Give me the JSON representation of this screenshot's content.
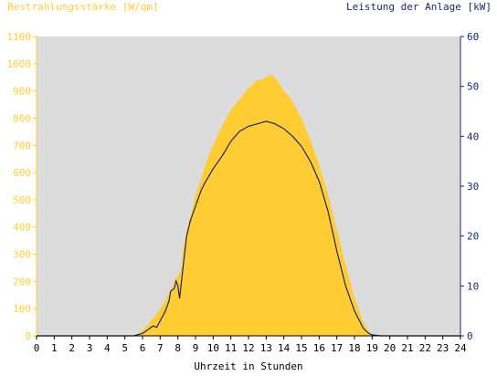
{
  "chart_data": {
    "type": "area",
    "left_axis_label": "Bestrahlungsstärke [W/qm]",
    "right_axis_label": "Leistung der Anlage [kW]",
    "xlabel": "Uhrzeit in Stunden",
    "xlim": [
      0,
      24
    ],
    "x_ticks": [
      "0",
      "1",
      "2",
      "3",
      "4",
      "5",
      "6",
      "7",
      "8",
      "9",
      "10",
      "11",
      "12",
      "13",
      "14",
      "15",
      "16",
      "17",
      "18",
      "19",
      "20",
      "21",
      "22",
      "23",
      "24"
    ],
    "y_left_lim": [
      0,
      1100
    ],
    "y_left_ticks": [
      "0",
      "100",
      "200",
      "300",
      "400",
      "500",
      "600",
      "700",
      "800",
      "900",
      "1000",
      "1100"
    ],
    "y_right_lim": [
      0,
      60
    ],
    "y_right_ticks": [
      "0",
      "10",
      "20",
      "30",
      "40",
      "50",
      "60"
    ],
    "grid": false,
    "colors": {
      "plot_bg": "#dcdcdc",
      "area": "#ffcc33",
      "line": "#1a2a6c",
      "left_axis": "#ffcc33",
      "right_axis": "#1a2a6c"
    },
    "series": [
      {
        "name": "Bestrahlungsstärke [W/qm]",
        "axis": "left",
        "render": "area",
        "x": [
          0,
          5.4,
          5.8,
          6.0,
          6.3,
          6.5,
          6.8,
          7.0,
          7.3,
          7.5,
          7.7,
          7.8,
          8.0,
          8.2,
          8.3,
          8.5,
          8.8,
          9.0,
          9.3,
          9.5,
          10.0,
          10.5,
          11.0,
          11.5,
          12.0,
          12.3,
          12.5,
          12.7,
          13.0,
          13.2,
          13.5,
          13.7,
          14.0,
          14.3,
          14.5,
          15.0,
          15.5,
          16.0,
          16.5,
          17.0,
          17.5,
          18.0,
          18.5,
          18.8,
          19.0,
          19.3,
          19.5,
          24
        ],
        "y": [
          0,
          0,
          10,
          20,
          40,
          60,
          80,
          100,
          130,
          160,
          180,
          200,
          220,
          250,
          320,
          390,
          460,
          520,
          570,
          620,
          700,
          770,
          830,
          870,
          910,
          930,
          940,
          940,
          950,
          960,
          950,
          930,
          900,
          880,
          860,
          800,
          720,
          630,
          520,
          390,
          260,
          140,
          50,
          15,
          5,
          0,
          0,
          0
        ]
      },
      {
        "name": "Leistung der Anlage [kW]",
        "axis": "right",
        "render": "line",
        "x": [
          0,
          5.5,
          6.0,
          6.3,
          6.6,
          6.8,
          7.0,
          7.3,
          7.5,
          7.6,
          7.8,
          7.9,
          8.0,
          8.1,
          8.3,
          8.5,
          8.7,
          9.0,
          9.3,
          9.5,
          10.0,
          10.5,
          11.0,
          11.5,
          12.0,
          12.5,
          13.0,
          13.2,
          13.5,
          14.0,
          14.5,
          15.0,
          15.5,
          16.0,
          16.5,
          17.0,
          17.5,
          18.0,
          18.5,
          18.8,
          19.0,
          19.5,
          24
        ],
        "y": [
          0,
          0,
          0.5,
          1.2,
          2.0,
          1.7,
          3.0,
          5.0,
          7.0,
          9.0,
          9.5,
          11.0,
          10.0,
          7.5,
          14.0,
          20.0,
          23.0,
          26.0,
          29.0,
          30.5,
          33.5,
          36.0,
          39.0,
          41.0,
          42.0,
          42.5,
          43.0,
          42.8,
          42.5,
          41.5,
          40.0,
          38.0,
          35.0,
          31.0,
          25.0,
          17.0,
          10.0,
          5.0,
          1.5,
          0.5,
          0.2,
          0,
          0
        ]
      }
    ]
  }
}
